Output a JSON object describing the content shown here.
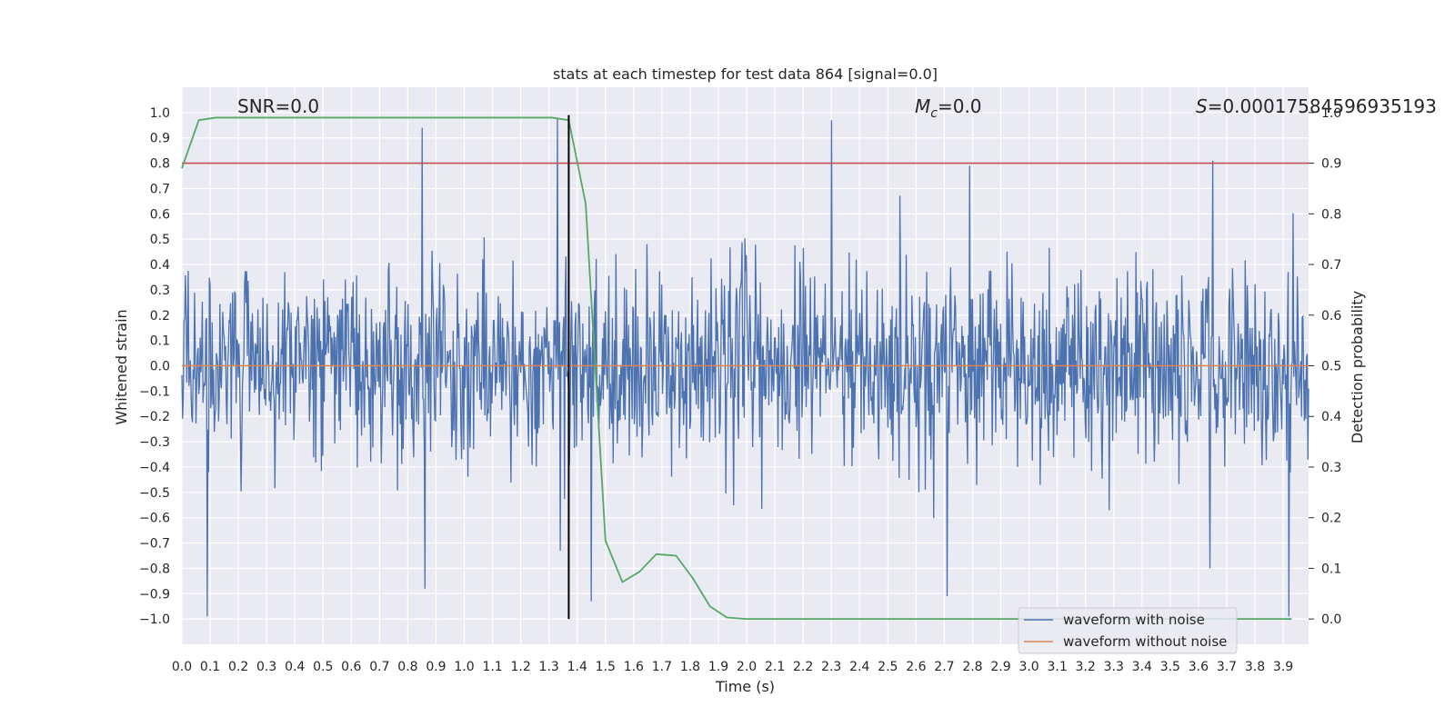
{
  "chart_data": {
    "type": "line",
    "title": "stats at each timestep for test data 864 [signal=0.0]",
    "xlabel": "Time (s)",
    "ylabel": "Whitened strain",
    "y2label": "Detection probability",
    "xlim": [
      0.0,
      3.99
    ],
    "ylim": [
      -1.1,
      1.1
    ],
    "y2lim": [
      -0.05,
      1.05
    ],
    "x_ticks": [
      "0.0",
      "0.1",
      "0.2",
      "0.3",
      "0.4",
      "0.5",
      "0.6",
      "0.7",
      "0.8",
      "0.9",
      "1.0",
      "1.1",
      "1.2",
      "1.3",
      "1.4",
      "1.5",
      "1.6",
      "1.7",
      "1.8",
      "1.9",
      "2.0",
      "2.1",
      "2.2",
      "2.3",
      "2.4",
      "2.5",
      "2.6",
      "2.7",
      "2.8",
      "2.9",
      "3.0",
      "3.1",
      "3.2",
      "3.3",
      "3.4",
      "3.5",
      "3.6",
      "3.7",
      "3.8",
      "3.9"
    ],
    "y_ticks": [
      "1.0",
      "0.9",
      "0.8",
      "0.7",
      "0.6",
      "0.5",
      "0.4",
      "0.3",
      "0.2",
      "0.1",
      "0.0",
      "−0.1",
      "−0.2",
      "−0.3",
      "−0.4",
      "−0.5",
      "−0.6",
      "−0.7",
      "−0.8",
      "−0.9",
      "−1.0"
    ],
    "y2_ticks": [
      "1.0",
      "0.9",
      "0.8",
      "0.7",
      "0.6",
      "0.5",
      "0.4",
      "0.3",
      "0.2",
      "0.1",
      "0.0"
    ],
    "annotations": {
      "snr": "SNR=0.0",
      "mc_symbol": "M",
      "mc_sub": "c",
      "mc_value": "=0.0",
      "s_symbol": "S",
      "s_value": "=0.00017584596935193"
    },
    "legend": {
      "placement": "lower-right",
      "entries": [
        "waveform with noise",
        "waveform without noise"
      ]
    },
    "grid": true,
    "series": [
      {
        "name": "waveform with noise",
        "axis": "left",
        "color": "#4c72b0",
        "seed": 864,
        "count": 1600,
        "noise_sigma": 0.19,
        "spikes": [
          {
            "x": 0.09,
            "y": -0.99
          },
          {
            "x": 0.85,
            "y": 0.94
          },
          {
            "x": 0.86,
            "y": -0.88
          },
          {
            "x": 1.33,
            "y": 0.98
          },
          {
            "x": 1.34,
            "y": -0.73
          },
          {
            "x": 1.45,
            "y": -0.93
          },
          {
            "x": 2.3,
            "y": 0.97
          },
          {
            "x": 2.71,
            "y": -0.91
          },
          {
            "x": 2.79,
            "y": 0.79
          },
          {
            "x": 3.65,
            "y": 0.81
          },
          {
            "x": 3.64,
            "y": -0.8
          },
          {
            "x": 3.92,
            "y": -0.99
          }
        ]
      },
      {
        "name": "waveform without noise",
        "axis": "left",
        "color": "#dd8452",
        "x": [
          0.0,
          3.99
        ],
        "y": [
          0.0,
          0.0
        ]
      },
      {
        "name": "",
        "axis": "right",
        "color": "#55a868",
        "x": [
          0.0,
          0.06,
          0.12,
          0.25,
          0.5,
          0.75,
          1.0,
          1.25,
          1.31,
          1.37,
          1.43,
          1.5,
          1.56,
          1.62,
          1.68,
          1.75,
          1.81,
          1.87,
          1.93,
          2.0,
          2.25,
          2.5,
          3.0,
          3.5,
          3.93
        ],
        "y": [
          0.89,
          0.985,
          0.99,
          0.99,
          0.99,
          0.99,
          0.99,
          0.99,
          0.99,
          0.985,
          0.82,
          0.155,
          0.073,
          0.093,
          0.128,
          0.125,
          0.08,
          0.025,
          0.003,
          0.0,
          0.0,
          0.0,
          0.0,
          0.0,
          0.0
        ]
      },
      {
        "name": "",
        "axis": "right",
        "color": "#c44e52",
        "x": [
          0.0,
          3.99
        ],
        "y": [
          0.9,
          0.9
        ]
      }
    ],
    "vline": {
      "x": 1.37,
      "y": [
        -1.0,
        0.99
      ],
      "color": "#000000"
    }
  }
}
